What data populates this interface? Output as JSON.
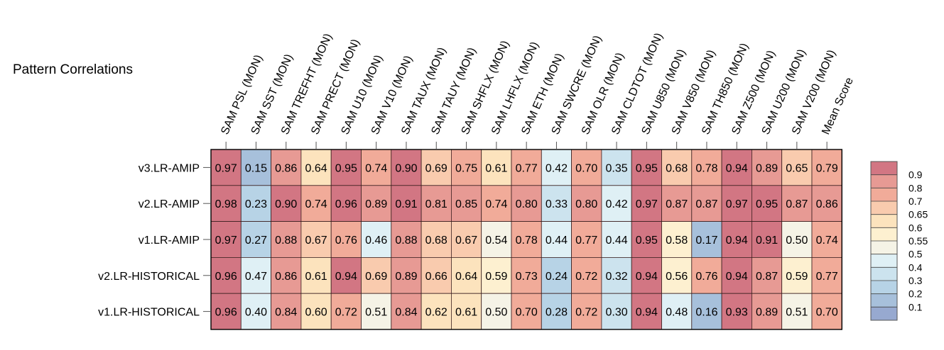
{
  "chart_data": {
    "type": "heatmap",
    "title": "Pattern Correlations",
    "columns": [
      "SAM PSL (MON)",
      "SAM SST (MON)",
      "SAM TREFHT (MON)",
      "SAM PRECT (MON)",
      "SAM U10 (MON)",
      "SAM V10 (MON)",
      "SAM TAUX (MON)",
      "SAM TAUY (MON)",
      "SAM SHFLX (MON)",
      "SAM LHFLX (MON)",
      "SAM ETH (MON)",
      "SAM SWCRE (MON)",
      "SAM OLR (MON)",
      "SAM CLDTOT (MON)",
      "SAM U850 (MON)",
      "SAM V850 (MON)",
      "SAM TH850 (MON)",
      "SAM Z500 (MON)",
      "SAM U200 (MON)",
      "SAM V200 (MON)",
      "Mean Score"
    ],
    "rows": [
      "v3.LR-AMIP",
      "v2.LR-AMIP",
      "v1.LR-AMIP",
      "v2.LR-HISTORICAL",
      "v1.LR-HISTORICAL"
    ],
    "values": [
      [
        0.97,
        0.15,
        0.86,
        0.64,
        0.95,
        0.74,
        0.9,
        0.69,
        0.75,
        0.61,
        0.77,
        0.42,
        0.7,
        0.35,
        0.95,
        0.68,
        0.78,
        0.94,
        0.89,
        0.65,
        0.79
      ],
      [
        0.98,
        0.23,
        0.9,
        0.74,
        0.96,
        0.89,
        0.91,
        0.81,
        0.85,
        0.74,
        0.8,
        0.33,
        0.8,
        0.42,
        0.97,
        0.87,
        0.87,
        0.97,
        0.95,
        0.87,
        0.86
      ],
      [
        0.97,
        0.27,
        0.88,
        0.67,
        0.76,
        0.46,
        0.88,
        0.68,
        0.67,
        0.54,
        0.78,
        0.44,
        0.77,
        0.44,
        0.95,
        0.58,
        0.17,
        0.94,
        0.91,
        0.5,
        0.74
      ],
      [
        0.96,
        0.47,
        0.86,
        0.61,
        0.94,
        0.69,
        0.89,
        0.66,
        0.64,
        0.59,
        0.73,
        0.24,
        0.72,
        0.32,
        0.94,
        0.56,
        0.76,
        0.94,
        0.87,
        0.59,
        0.77
      ],
      [
        0.96,
        0.4,
        0.84,
        0.6,
        0.72,
        0.51,
        0.84,
        0.62,
        0.61,
        0.5,
        0.7,
        0.28,
        0.72,
        0.3,
        0.94,
        0.48,
        0.16,
        0.93,
        0.89,
        0.51,
        0.7
      ]
    ],
    "colorbar": {
      "ticks": [
        "0.9",
        "0.8",
        "0.7",
        "0.65",
        "0.6",
        "0.55",
        "0.5",
        "0.4",
        "0.3",
        "0.2",
        "0.1"
      ],
      "thresholds": [
        0.1,
        0.2,
        0.3,
        0.4,
        0.5,
        0.55,
        0.6,
        0.65,
        0.7,
        0.8,
        0.9
      ],
      "colors": [
        "#97a9d0",
        "#a7c0db",
        "#b7d3e6",
        "#cce3ee",
        "#dff0f5",
        "#f5f3e6",
        "#fdf0d0",
        "#fce3bd",
        "#f9cbae",
        "#f1ab99",
        "#e79a94",
        "#d27683"
      ]
    }
  }
}
